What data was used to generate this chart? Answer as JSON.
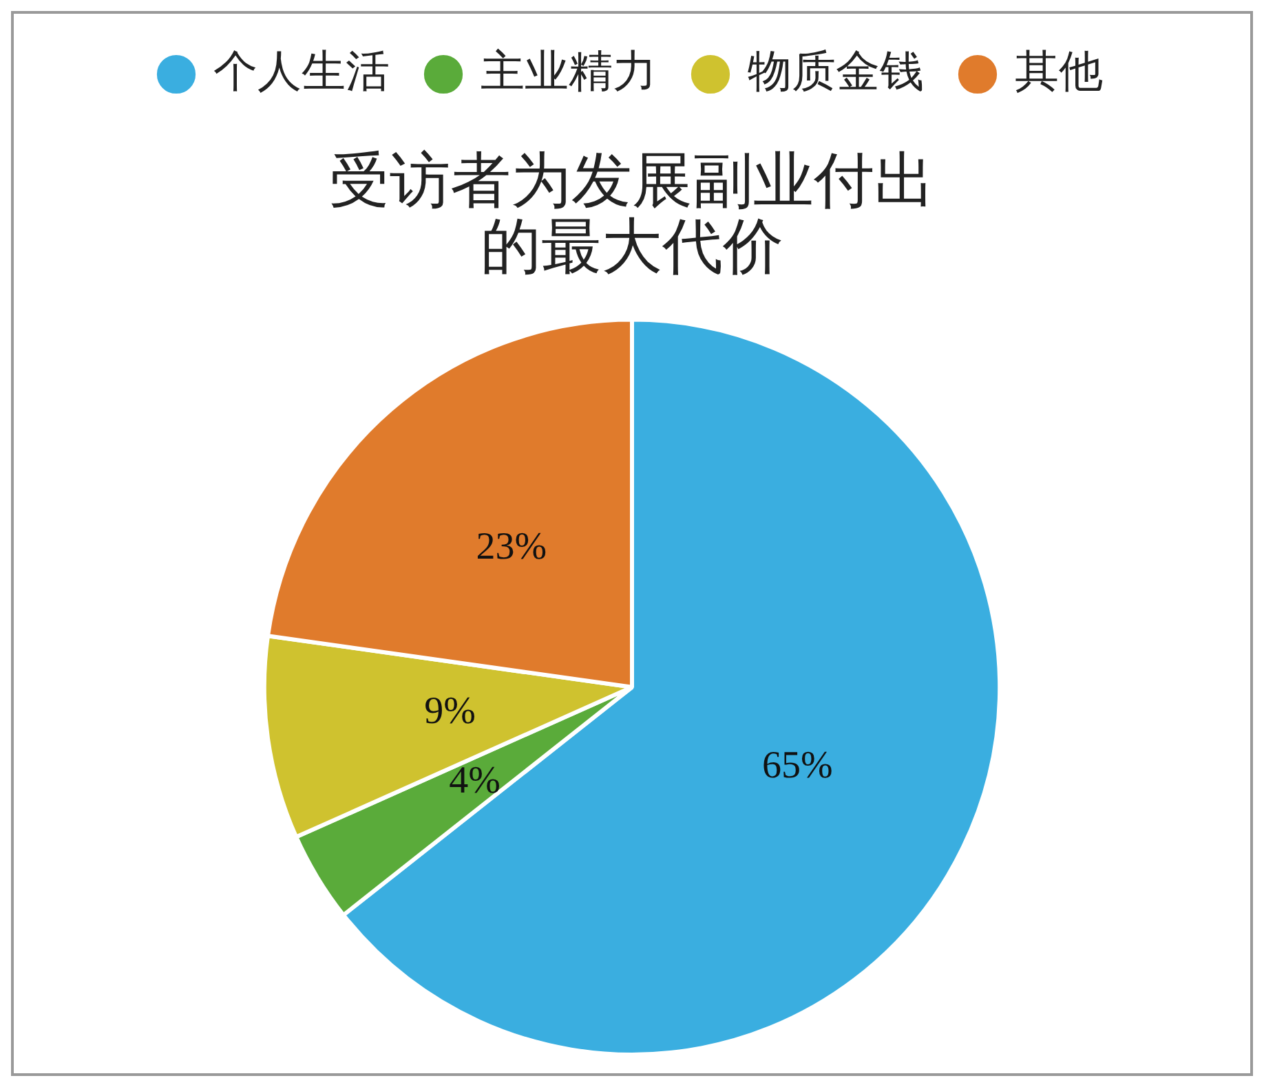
{
  "chart_data": {
    "type": "pie",
    "title": "受访者为发展副业付出的最大代价",
    "categories": [
      "个人生活",
      "主业精力",
      "物质金钱",
      "其他"
    ],
    "values": [
      65,
      4,
      9,
      23
    ],
    "colors": [
      "#3aaee0",
      "#5aab3a",
      "#cfc22f",
      "#e07b2c"
    ],
    "value_labels": [
      "65%",
      "4%",
      "9%",
      "23%"
    ],
    "legend": "top"
  }
}
